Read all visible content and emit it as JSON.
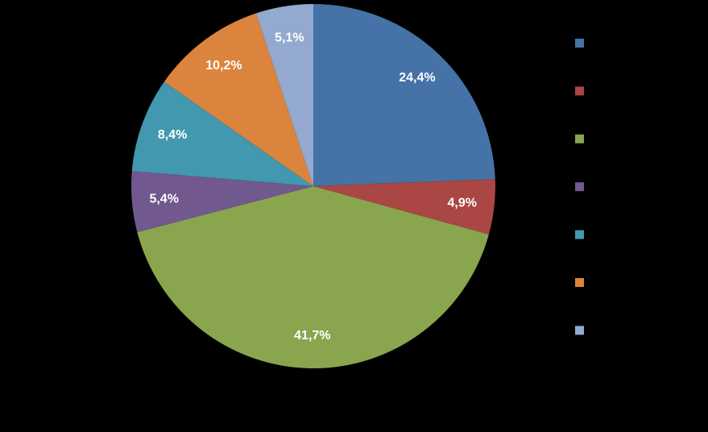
{
  "chart_data": {
    "type": "pie",
    "title": "",
    "start_angle_deg": 0,
    "direction": "clockwise",
    "legend_placement": "right",
    "slices": [
      {
        "value": 24.4,
        "label": "24,4%",
        "color": "#4572A7"
      },
      {
        "value": 4.9,
        "label": "4,9%",
        "color": "#AA4643"
      },
      {
        "value": 41.7,
        "label": "41,7%",
        "color": "#89A54E"
      },
      {
        "value": 5.4,
        "label": "5,4%",
        "color": "#71588F"
      },
      {
        "value": 8.4,
        "label": "8,4%",
        "color": "#4198AF"
      },
      {
        "value": 10.2,
        "label": "10,2%",
        "color": "#DB843D"
      },
      {
        "value": 5.1,
        "label": "5,1%",
        "color": "#93A9CF"
      }
    ]
  },
  "background_color": "#000000",
  "label_color": "#FFFFFF"
}
